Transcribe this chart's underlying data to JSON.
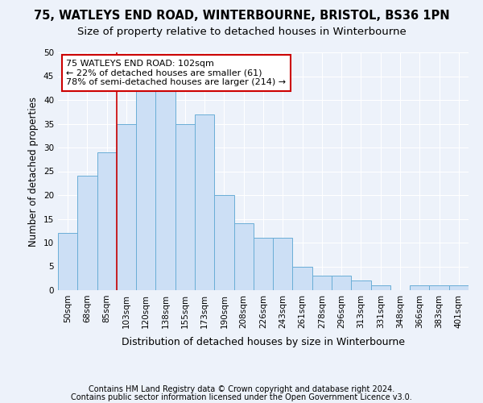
{
  "title1": "75, WATLEYS END ROAD, WINTERBOURNE, BRISTOL, BS36 1PN",
  "title2": "Size of property relative to detached houses in Winterbourne",
  "xlabel": "Distribution of detached houses by size in Winterbourne",
  "ylabel": "Number of detached properties",
  "footer1": "Contains HM Land Registry data © Crown copyright and database right 2024.",
  "footer2": "Contains public sector information licensed under the Open Government Licence v3.0.",
  "categories": [
    "50sqm",
    "68sqm",
    "85sqm",
    "103sqm",
    "120sqm",
    "138sqm",
    "155sqm",
    "173sqm",
    "190sqm",
    "208sqm",
    "226sqm",
    "243sqm",
    "261sqm",
    "278sqm",
    "296sqm",
    "313sqm",
    "331sqm",
    "348sqm",
    "366sqm",
    "383sqm",
    "401sqm"
  ],
  "values": [
    12,
    24,
    29,
    35,
    42,
    42,
    35,
    37,
    20,
    14,
    11,
    11,
    5,
    3,
    3,
    2,
    1,
    0,
    1,
    1,
    1
  ],
  "bar_color": "#ccdff5",
  "bar_edge_color": "#6aaed6",
  "property_line_index": 3,
  "property_line_color": "#cc0000",
  "annotation_text": "75 WATLEYS END ROAD: 102sqm\n← 22% of detached houses are smaller (61)\n78% of semi-detached houses are larger (214) →",
  "annotation_box_facecolor": "#ffffff",
  "annotation_box_edgecolor": "#cc0000",
  "ylim": [
    0,
    50
  ],
  "yticks": [
    0,
    5,
    10,
    15,
    20,
    25,
    30,
    35,
    40,
    45,
    50
  ],
  "background_color": "#edf2fa",
  "grid_color": "#ffffff",
  "title1_fontsize": 10.5,
  "title2_fontsize": 9.5,
  "xlabel_fontsize": 9,
  "ylabel_fontsize": 8.5,
  "tick_fontsize": 7.5,
  "annotation_fontsize": 8,
  "footer_fontsize": 7
}
